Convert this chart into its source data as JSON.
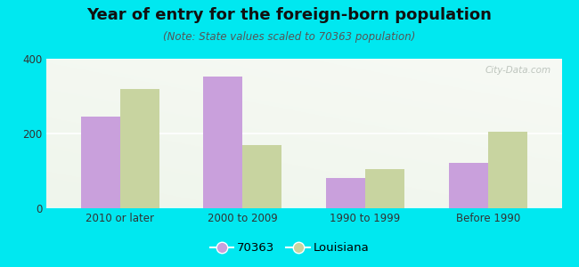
{
  "title": "Year of entry for the foreign-born population",
  "subtitle": "(Note: State values scaled to 70363 population)",
  "categories": [
    "2010 or later",
    "2000 to 2009",
    "1990 to 1999",
    "Before 1990"
  ],
  "values_70363": [
    245,
    352,
    80,
    122
  ],
  "values_louisiana": [
    318,
    170,
    105,
    205
  ],
  "color_70363": "#c9a0dc",
  "color_louisiana": "#c8d4a0",
  "background_outer": "#00e8f0",
  "ylim": [
    0,
    400
  ],
  "yticks": [
    0,
    200,
    400
  ],
  "legend_label_1": "70363",
  "legend_label_2": "Louisiana",
  "bar_width": 0.32,
  "title_fontsize": 13,
  "subtitle_fontsize": 8.5,
  "tick_fontsize": 8.5,
  "legend_fontsize": 9.5
}
